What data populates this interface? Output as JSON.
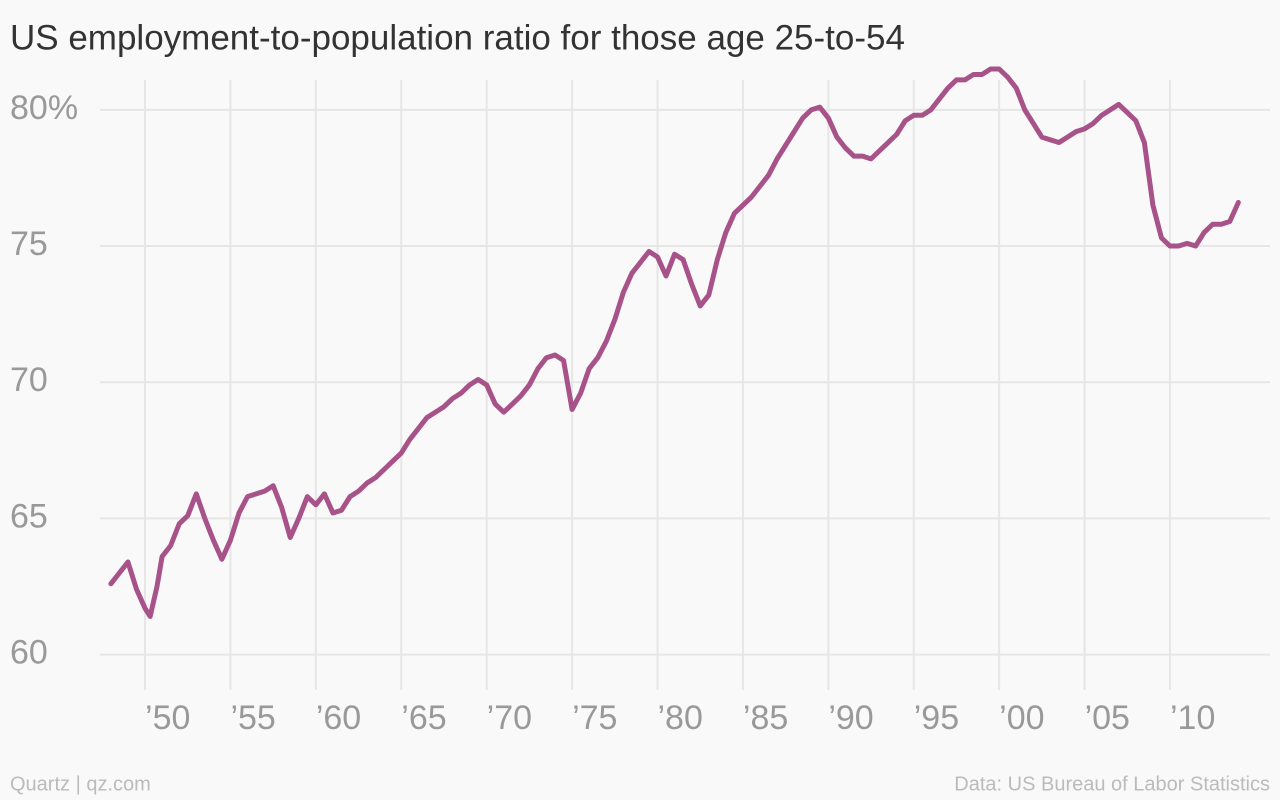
{
  "chart_data": {
    "type": "line",
    "title": "US employment-to-population ratio for those age 25-to-54",
    "footer_left": "Quartz | qz.com",
    "footer_right": "Data: US Bureau of Labor Statistics",
    "x": [
      1948.0,
      1948.5,
      1949.0,
      1949.5,
      1950.0,
      1950.3,
      1950.7,
      1951.0,
      1951.5,
      1952.0,
      1952.5,
      1953.0,
      1953.5,
      1954.0,
      1954.5,
      1955.0,
      1955.5,
      1956.0,
      1956.5,
      1957.0,
      1957.5,
      1958.0,
      1958.5,
      1959.0,
      1959.5,
      1960.0,
      1960.5,
      1961.0,
      1961.5,
      1962.0,
      1962.5,
      1963.0,
      1963.5,
      1964.0,
      1964.5,
      1965.0,
      1965.5,
      1966.0,
      1966.5,
      1967.0,
      1967.5,
      1968.0,
      1968.5,
      1969.0,
      1969.5,
      1970.0,
      1970.5,
      1971.0,
      1971.5,
      1972.0,
      1972.5,
      1973.0,
      1973.5,
      1974.0,
      1974.5,
      1975.0,
      1975.5,
      1976.0,
      1976.5,
      1977.0,
      1977.5,
      1978.0,
      1978.5,
      1979.0,
      1979.5,
      1980.0,
      1980.5,
      1981.0,
      1981.5,
      1982.0,
      1982.5,
      1983.0,
      1983.5,
      1984.0,
      1984.5,
      1985.0,
      1985.5,
      1986.0,
      1986.5,
      1987.0,
      1987.5,
      1988.0,
      1988.5,
      1989.0,
      1989.5,
      1990.0,
      1990.5,
      1991.0,
      1991.5,
      1992.0,
      1992.5,
      1993.0,
      1993.5,
      1994.0,
      1994.5,
      1995.0,
      1995.5,
      1996.0,
      1996.5,
      1997.0,
      1997.5,
      1998.0,
      1998.5,
      1999.0,
      1999.5,
      2000.0,
      2000.5,
      2001.0,
      2001.5,
      2002.0,
      2002.5,
      2003.0,
      2003.5,
      2004.0,
      2004.5,
      2005.0,
      2005.5,
      2006.0,
      2006.5,
      2007.0,
      2007.5,
      2008.0,
      2008.5,
      2009.0,
      2009.5,
      2010.0,
      2010.5,
      2011.0,
      2011.5,
      2012.0,
      2012.5,
      2013.0,
      2013.5,
      2014.0
    ],
    "series": [
      {
        "name": "Employment-to-population ratio",
        "color": "#a8528a",
        "values": [
          62.6,
          63.0,
          63.4,
          62.4,
          61.7,
          61.4,
          62.5,
          63.6,
          64.0,
          64.8,
          65.1,
          65.9,
          65.0,
          64.2,
          63.5,
          64.2,
          65.2,
          65.8,
          65.9,
          66.0,
          66.2,
          65.4,
          64.3,
          65.0,
          65.8,
          65.5,
          65.9,
          65.2,
          65.3,
          65.8,
          66.0,
          66.3,
          66.5,
          66.8,
          67.1,
          67.4,
          67.9,
          68.3,
          68.7,
          68.9,
          69.1,
          69.4,
          69.6,
          69.9,
          70.1,
          69.9,
          69.2,
          68.9,
          69.2,
          69.5,
          69.9,
          70.5,
          70.9,
          71.0,
          70.8,
          69.0,
          69.6,
          70.5,
          70.9,
          71.5,
          72.3,
          73.3,
          74.0,
          74.4,
          74.8,
          74.6,
          73.9,
          74.7,
          74.5,
          73.6,
          72.8,
          73.2,
          74.5,
          75.5,
          76.2,
          76.5,
          76.8,
          77.2,
          77.6,
          78.2,
          78.7,
          79.2,
          79.7,
          80.0,
          80.1,
          79.7,
          79.0,
          78.6,
          78.3,
          78.3,
          78.2,
          78.5,
          78.8,
          79.1,
          79.6,
          79.8,
          79.8,
          80.0,
          80.4,
          80.8,
          81.1,
          81.1,
          81.3,
          81.3,
          81.5,
          81.5,
          81.2,
          80.8,
          80.0,
          79.5,
          79.0,
          78.9,
          78.8,
          79.0,
          79.2,
          79.3,
          79.5,
          79.8,
          80.0,
          80.2,
          79.9,
          79.6,
          78.8,
          76.5,
          75.3,
          75.0,
          75.0,
          75.1,
          75.0,
          75.5,
          75.8,
          75.8,
          75.9,
          76.6
        ]
      }
    ],
    "xlim": [
      1946,
      2015
    ],
    "xticks": [
      {
        "value": 1950,
        "label": "’50"
      },
      {
        "value": 1955,
        "label": "’55"
      },
      {
        "value": 1960,
        "label": "’60"
      },
      {
        "value": 1965,
        "label": "’65"
      },
      {
        "value": 1970,
        "label": "’70"
      },
      {
        "value": 1975,
        "label": "’75"
      },
      {
        "value": 1980,
        "label": "’80"
      },
      {
        "value": 1985,
        "label": "’85"
      },
      {
        "value": 1990,
        "label": "’90"
      },
      {
        "value": 1995,
        "label": "’95"
      },
      {
        "value": 2000,
        "label": "’00"
      },
      {
        "value": 2005,
        "label": "’05"
      },
      {
        "value": 2010,
        "label": "’10"
      }
    ],
    "ylim": [
      58.7,
      81.5
    ],
    "yticks": [
      60,
      65,
      70,
      75,
      {
        "value": 80,
        "label": "80%"
      }
    ],
    "grid": true
  }
}
